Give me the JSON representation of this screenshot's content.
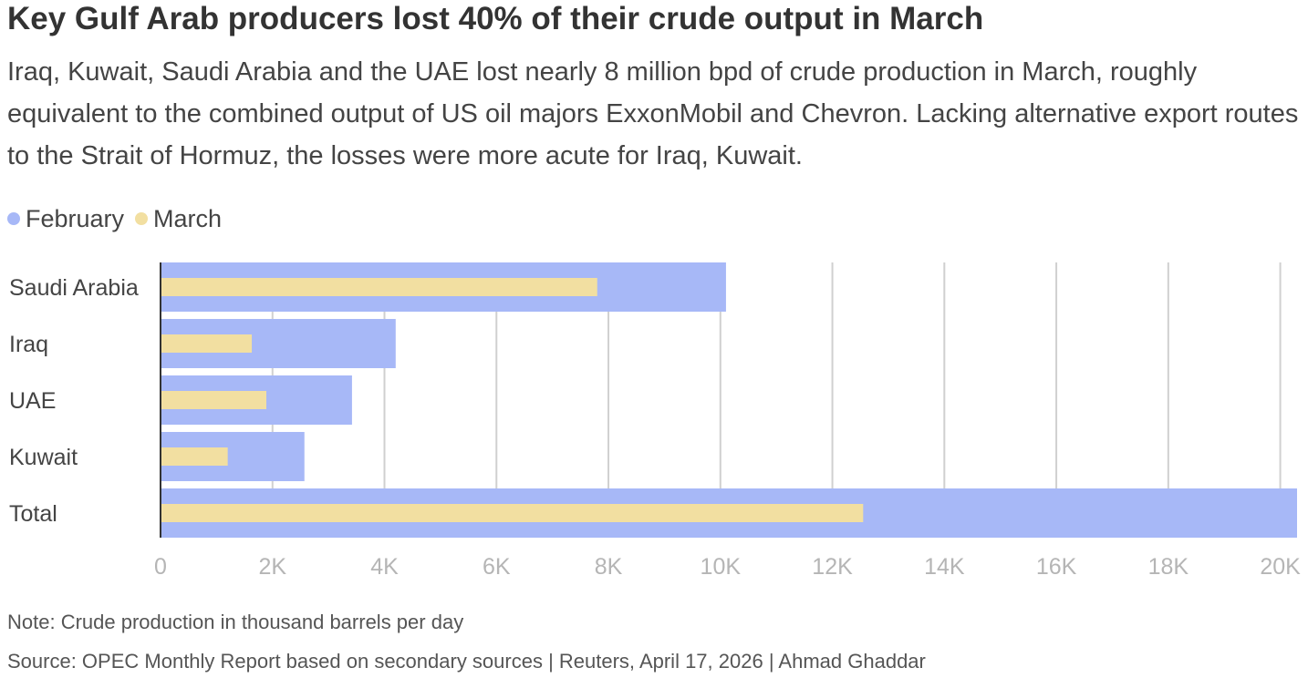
{
  "header": {
    "title": "Key Gulf Arab producers lost 40% of their crude output in March",
    "subtitle": "Iraq, Kuwait, Saudi Arabia and the UAE lost nearly 8 million bpd of crude production in March, roughly equivalent to the combined output of US oil majors ExxonMobil and Chevron. Lacking alternative export routes to the Strait of Hormuz, the losses were more acute for Iraq, Kuwait."
  },
  "legend": {
    "items": [
      {
        "label": "February",
        "color": "#a7b8f7"
      },
      {
        "label": "March",
        "color": "#f2dfa1"
      }
    ]
  },
  "chart_data": {
    "type": "bar",
    "orientation": "horizontal",
    "categories": [
      "Saudi Arabia",
      "Iraq",
      "UAE",
      "Kuwait",
      "Total"
    ],
    "series": [
      {
        "name": "February",
        "values": [
          10100,
          4200,
          3420,
          2570,
          20300
        ],
        "color": "#a7b8f7"
      },
      {
        "name": "March",
        "values": [
          7800,
          1630,
          1890,
          1200,
          12550
        ],
        "color": "#f2dfa1"
      }
    ],
    "xlim": [
      0,
      20300
    ],
    "xticks": [
      0,
      2000,
      4000,
      6000,
      8000,
      10000,
      12000,
      14000,
      16000,
      18000,
      20000
    ],
    "xtick_labels": [
      "0",
      "2K",
      "4K",
      "6K",
      "8K",
      "10K",
      "12K",
      "14K",
      "16K",
      "18K",
      "20K"
    ],
    "grid": true,
    "legend_position": "top-left"
  },
  "footer": {
    "note": "Note: Crude production in thousand barrels per day",
    "source": "Source: OPEC Monthly Report based on secondary sources | Reuters, April 17, 2026 | Ahmad Ghaddar"
  }
}
